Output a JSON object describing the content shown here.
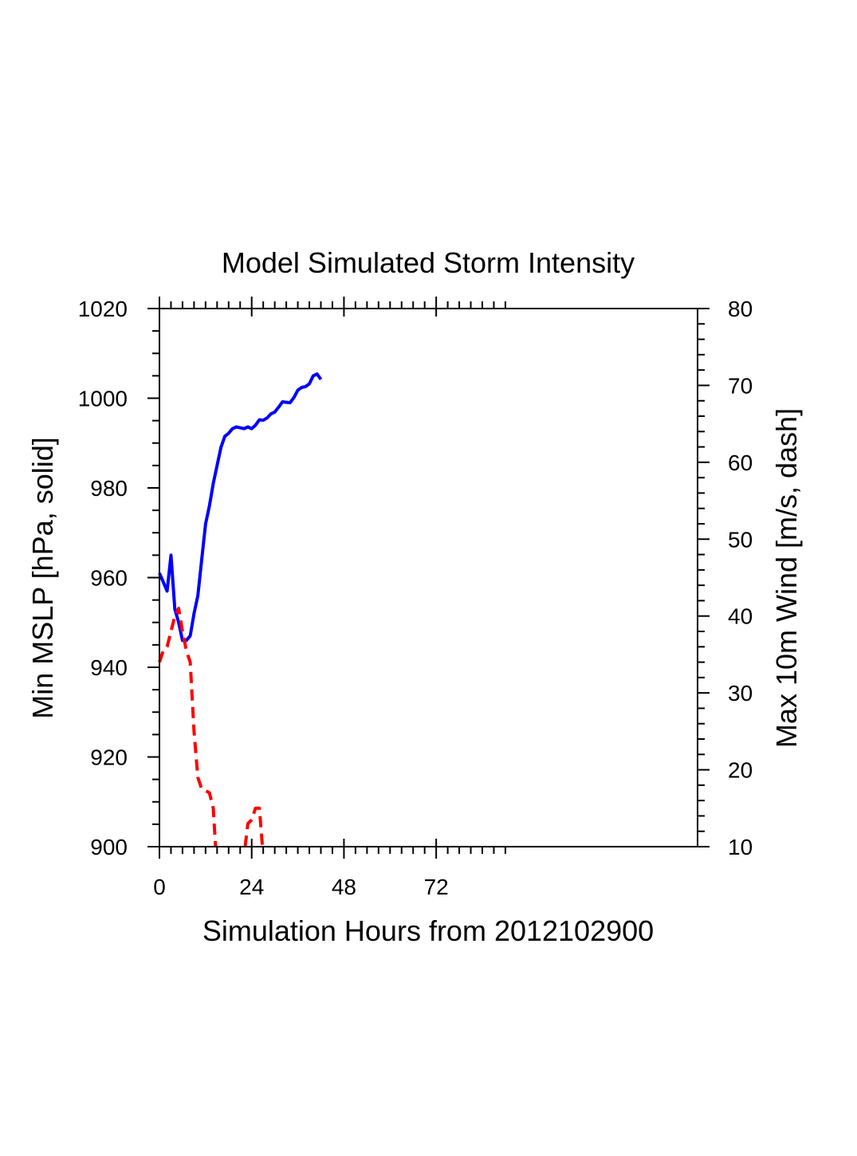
{
  "chart_data": {
    "type": "line",
    "title": "Model Simulated Storm Intensity",
    "xlabel": "Simulation Hours from 2012102900",
    "ylabel_left": "Min MSLP  [hPa, solid]",
    "ylabel_right": "Max 10m Wind  [m/s, dash]",
    "xlim": [
      0,
      140
    ],
    "ylim_left": [
      900,
      1020
    ],
    "ylim_right": [
      10,
      80
    ],
    "x_ticks": [
      0,
      24,
      48,
      72
    ],
    "y_ticks_left": [
      900,
      920,
      940,
      960,
      980,
      1000,
      1020
    ],
    "y_ticks_right": [
      10,
      20,
      30,
      40,
      50,
      60,
      70,
      80
    ],
    "grid": false,
    "series": [
      {
        "axis": "left",
        "style": "solid",
        "color": "#0000ff",
        "x": [
          0,
          1,
          2,
          3,
          4,
          5,
          6,
          7,
          8,
          9,
          10,
          11,
          12,
          13,
          14,
          15,
          16,
          17,
          18,
          19,
          20,
          21,
          22,
          23,
          24,
          25,
          26,
          27,
          28,
          29,
          30,
          31,
          32,
          33,
          34,
          35,
          36,
          37,
          38,
          39,
          40,
          41,
          42
        ],
        "y": [
          961,
          959,
          957,
          965,
          953,
          950,
          946,
          946,
          947,
          952,
          956,
          964,
          972,
          976,
          981,
          985,
          989,
          991.5,
          992.2,
          993.2,
          993.6,
          993.4,
          993.2,
          993.6,
          993.2,
          994,
          995.2,
          995.1,
          995.6,
          996.5,
          996.9,
          998,
          999.2,
          999.1,
          999,
          1000.2,
          1001.8,
          1002.4,
          1002.6,
          1003.2,
          1005,
          1005.4,
          1004.2
        ]
      },
      {
        "axis": "right",
        "style": "dash",
        "color": "#ff0000",
        "x": [
          0,
          1,
          2,
          3,
          4,
          5,
          6,
          7,
          8,
          9,
          10,
          11,
          12,
          13,
          14,
          14.6
        ],
        "y": [
          34,
          35.5,
          36,
          38,
          40,
          41,
          38,
          35.5,
          34,
          25,
          19,
          17.5,
          17.3,
          17,
          15,
          10
        ],
        "x2": [
          22.3,
          23,
          24,
          25,
          26,
          26.8
        ],
        "y2": [
          10,
          13,
          13.5,
          15,
          15,
          10
        ]
      }
    ]
  }
}
